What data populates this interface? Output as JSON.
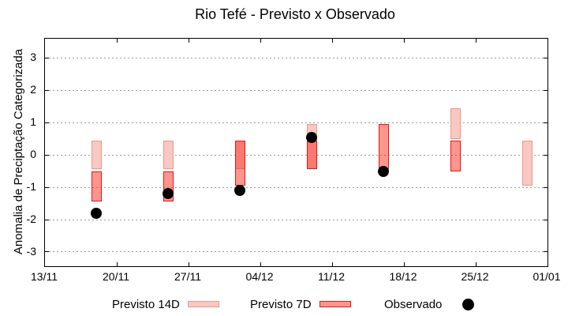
{
  "title": "Rio Tefé - Previsto x Observado",
  "y_axis": {
    "label": "Anomalia de Preciptação Categorizada",
    "ticks": [
      3,
      2,
      1,
      0,
      -1,
      -2,
      -3
    ]
  },
  "x_axis": {
    "ticks": [
      "13/11",
      "20/11",
      "27/11",
      "04/12",
      "11/12",
      "18/12",
      "25/12",
      "01/01"
    ],
    "range_days": 49,
    "tick_interval_days": 7
  },
  "legend": {
    "items": [
      {
        "label": "Previsto 14D",
        "swatch": "pink-box"
      },
      {
        "label": "Previsto 7D",
        "swatch": "red-box"
      },
      {
        "label": "Observado",
        "swatch": "black-dot"
      }
    ]
  },
  "colors": {
    "forecast14_fill": "#f8c8c2",
    "forecast14_border": "#f0968c",
    "forecast7_fill": "rgba(250,30,16,0.47)",
    "forecast7_border": "#ee1410",
    "observed": "#000000",
    "grid": "#999999"
  },
  "chart_data": {
    "type": "bar",
    "title": "Rio Tefé - Previsto x Observado",
    "ylabel": "Anomalia de Preciptação Categorizada",
    "ylim": [
      -3.44,
      3.59
    ],
    "grid": "dotted horizontal at integer values",
    "legend_position": "below plot",
    "series_info": "previsto_14d and previsto_7d are [low, high] forecast category ranges drawn as boxes; observado is a black dot",
    "weeks": [
      {
        "date": "18/11",
        "day_offset": 5,
        "previsto_14d": [
          -0.45,
          0.45
        ],
        "previsto_7d": [
          -1.45,
          -0.5
        ],
        "observado": -1.8
      },
      {
        "date": "25/11",
        "day_offset": 12,
        "previsto_14d": [
          -0.45,
          0.45
        ],
        "previsto_7d": [
          -1.45,
          -0.5
        ],
        "observado": -1.2
      },
      {
        "date": "02/12",
        "day_offset": 19,
        "previsto_14d": [
          -0.45,
          0.45
        ],
        "previsto_7d": [
          -0.95,
          0.45
        ],
        "observado": -1.1
      },
      {
        "date": "09/12",
        "day_offset": 26,
        "previsto_14d": [
          -0.45,
          0.95
        ],
        "previsto_7d": [
          -0.45,
          0.45
        ],
        "observado": 0.55
      },
      {
        "date": "16/12",
        "day_offset": 33,
        "previsto_14d": null,
        "previsto_7d": [
          -0.45,
          0.95
        ],
        "observado": -0.5
      },
      {
        "date": "23/12",
        "day_offset": 40,
        "previsto_14d": [
          0.5,
          1.45
        ],
        "previsto_7d": [
          -0.5,
          0.45
        ],
        "observado": null
      },
      {
        "date": "30/12",
        "day_offset": 47,
        "previsto_14d": [
          -0.95,
          0.45
        ],
        "previsto_7d": null,
        "observado": null
      }
    ]
  }
}
